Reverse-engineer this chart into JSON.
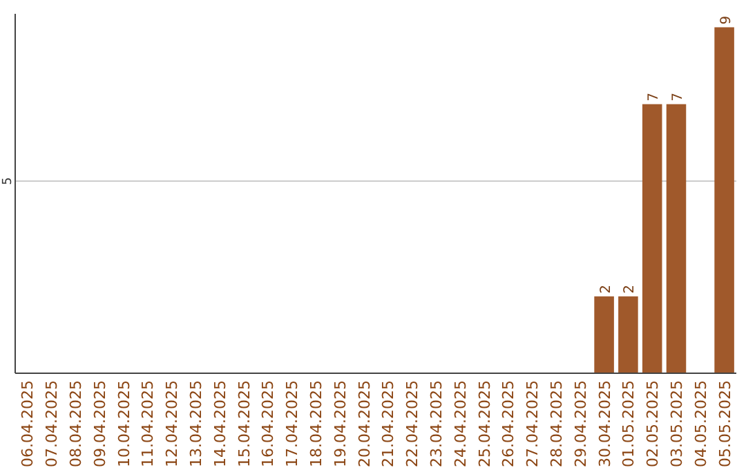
{
  "chart_data": {
    "type": "bar",
    "ylim": [
      0,
      9.35
    ],
    "yticks": [
      5
    ],
    "grid": "y",
    "data_labels": true,
    "categories": [
      "06.04.2025",
      "07.04.2025",
      "08.04.2025",
      "09.04.2025",
      "10.04.2025",
      "11.04.2025",
      "12.04.2025",
      "13.04.2025",
      "14.04.2025",
      "15.04.2025",
      "16.04.2025",
      "17.04.2025",
      "18.04.2025",
      "19.04.2025",
      "20.04.2025",
      "21.04.2025",
      "22.04.2025",
      "23.04.2025",
      "24.04.2025",
      "25.04.2025",
      "26.04.2025",
      "27.04.2025",
      "28.04.2025",
      "29.04.2025",
      "30.04.2025",
      "01.05.2025",
      "02.05.2025",
      "03.05.2025",
      "04.05.2025",
      "05.05.2025"
    ],
    "values": [
      null,
      null,
      null,
      null,
      null,
      null,
      null,
      null,
      null,
      null,
      null,
      null,
      null,
      null,
      null,
      null,
      null,
      null,
      null,
      null,
      null,
      null,
      null,
      null,
      2,
      2,
      7,
      7,
      null,
      9
    ],
    "color": "#a0592b"
  }
}
